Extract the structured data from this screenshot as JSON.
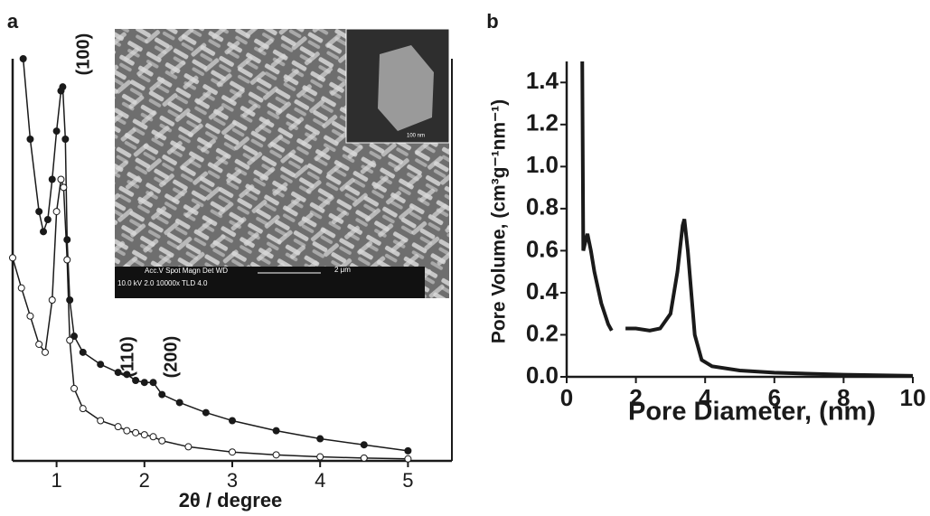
{
  "chart_data": [
    {
      "type": "line",
      "panel_label": "a",
      "x_label": "2θ / degree",
      "xlim": [
        0.5,
        5.5
      ],
      "xticks": [
        1,
        2,
        3,
        4,
        5
      ],
      "ylim": [
        0,
        100
      ],
      "series": [
        {
          "color": "#1a1a1a",
          "marker": "filled",
          "x": [
            0.62,
            0.7,
            0.8,
            0.85,
            0.9,
            0.95,
            1.0,
            1.05,
            1.07,
            1.1,
            1.12,
            1.15,
            1.2,
            1.3,
            1.5,
            1.7,
            1.8,
            1.9,
            2.0,
            2.1,
            2.2,
            2.4,
            2.7,
            3.0,
            3.5,
            4.0,
            4.5,
            5.0
          ],
          "values": [
            100,
            80,
            62,
            57,
            60,
            70,
            82,
            92,
            93,
            80,
            55,
            40,
            31,
            27,
            24,
            22,
            21.5,
            20,
            19.5,
            19.5,
            16.5,
            14.5,
            12,
            10,
            7.5,
            5.5,
            4,
            2.5
          ]
        },
        {
          "color": "#1a1a1a",
          "marker": "open",
          "x": [
            0.5,
            0.6,
            0.7,
            0.8,
            0.87,
            0.95,
            1.0,
            1.05,
            1.08,
            1.12,
            1.15,
            1.2,
            1.3,
            1.5,
            1.7,
            1.8,
            1.9,
            2.0,
            2.1,
            2.2,
            2.5,
            3.0,
            3.5,
            4.0,
            4.5,
            5.0
          ],
          "values": [
            50.5,
            43,
            36,
            29,
            27,
            40,
            62,
            70,
            68,
            50,
            30,
            18,
            13,
            10,
            8.5,
            7.5,
            7,
            6.5,
            6,
            5,
            3.5,
            2.2,
            1.5,
            1,
            0.7,
            0.5
          ]
        }
      ],
      "annotations": [
        "(100)",
        "(110)",
        "(200)"
      ],
      "inset_texts": [
        "Acc.V  Spot Magn   Det  WD",
        "2 μm",
        "10.0 kV 2.0  10000x  TLD  4.0",
        "100 nm"
      ]
    },
    {
      "type": "line",
      "panel_label": "b",
      "x_label": "Pore Diameter, (nm)",
      "y_label": "Pore Volume, (cm³g⁻¹nm⁻¹)",
      "xlim": [
        0,
        10
      ],
      "xticks": [
        0,
        2,
        4,
        6,
        8,
        10
      ],
      "ylim": [
        0,
        1.5
      ],
      "yticks": [
        {
          "value": 0,
          "label": "0.0"
        },
        0.2,
        0.4,
        0.6,
        0.8,
        {
          "value": 1,
          "label": "1.0"
        },
        1.2,
        1.4
      ],
      "series": [
        {
          "color": "#1a1a1a",
          "x": [
            0.45,
            0.48,
            0.55,
            0.6,
            0.7,
            0.8,
            1.0,
            1.2,
            1.3,
            1.5,
            1.7,
            2.0,
            2.4,
            2.7,
            3.0,
            3.2,
            3.35,
            3.4,
            3.5,
            3.7,
            3.9,
            4.2,
            5,
            6,
            8,
            10
          ],
          "values": [
            1.5,
            0.6,
            0.65,
            0.68,
            0.6,
            0.5,
            0.35,
            0.25,
            0.22,
            null,
            0.23,
            0.23,
            0.22,
            0.23,
            0.3,
            0.5,
            0.72,
            0.75,
            0.6,
            0.2,
            0.08,
            0.05,
            0.03,
            0.02,
            0.01,
            0.005
          ]
        }
      ]
    }
  ]
}
